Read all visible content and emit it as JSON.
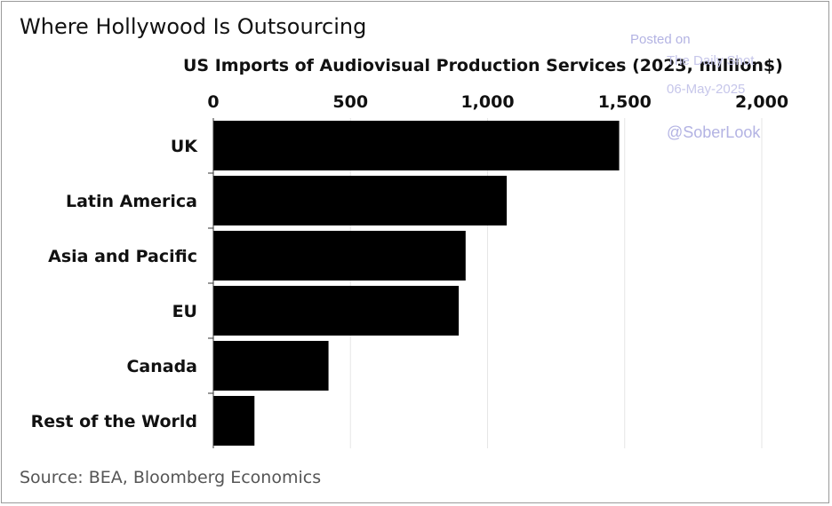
{
  "title": "Where Hollywood Is Outsourcing",
  "source": "Source: BEA, Bloomberg Economics",
  "watermark": {
    "line1": "Posted on",
    "line2": "The Daily Shot",
    "line3": "06-May-2025",
    "line4": "@SoberLook"
  },
  "colors": {
    "bar": "#000000",
    "grid": "#e6e6e6",
    "axis": "#333333",
    "watermark": "#b3b3e3"
  },
  "chart_data": {
    "type": "bar",
    "orientation": "horizontal",
    "title": "US Imports of Audiovisual Production Services (2023, million$)",
    "xlabel": "",
    "ylabel": "",
    "xlim": [
      0,
      2000
    ],
    "ticks": [
      0,
      500,
      1000,
      1500,
      2000
    ],
    "tick_labels": [
      "0",
      "500",
      "1,000",
      "1,500",
      "2,000"
    ],
    "categories": [
      "UK",
      "Latin America",
      "Asia and Pacific",
      "EU",
      "Canada",
      "Rest of the World"
    ],
    "values": [
      1480,
      1070,
      920,
      895,
      420,
      150
    ],
    "grid": true,
    "legend": "none"
  }
}
